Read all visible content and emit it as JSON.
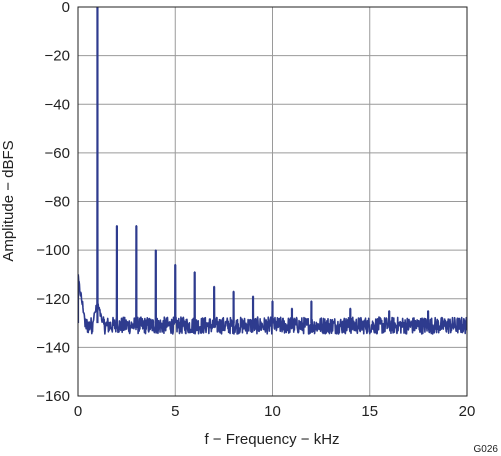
{
  "chart_data": {
    "type": "line",
    "xlabel": "f − Frequency − kHz",
    "ylabel": "Amplitude − dBFS",
    "figure_id": "G026",
    "xlim": [
      0,
      20
    ],
    "ylim": [
      -160,
      0
    ],
    "x_ticks": [
      0,
      5,
      10,
      15,
      20
    ],
    "y_ticks": [
      0,
      -20,
      -40,
      -60,
      -80,
      -100,
      -120,
      -140,
      -160
    ],
    "x_tick_labels": [
      "0",
      "5",
      "10",
      "15",
      "20"
    ],
    "y_tick_labels": [
      "0",
      "−20",
      "−40",
      "−60",
      "−80",
      "−100",
      "−120",
      "−140",
      "−160"
    ],
    "grid": true,
    "line_color": "#2E3B8E",
    "noise_floor_dbfs": -130,
    "peaks": [
      {
        "x": 0.0,
        "y": -110
      },
      {
        "x": 1.0,
        "y": 0
      },
      {
        "x": 2.0,
        "y": -90
      },
      {
        "x": 3.0,
        "y": -90
      },
      {
        "x": 4.0,
        "y": -100
      },
      {
        "x": 5.0,
        "y": -106
      },
      {
        "x": 6.0,
        "y": -109
      },
      {
        "x": 7.0,
        "y": -115
      },
      {
        "x": 8.0,
        "y": -117
      },
      {
        "x": 9.0,
        "y": -119
      },
      {
        "x": 10.0,
        "y": -121
      },
      {
        "x": 11.0,
        "y": -124
      },
      {
        "x": 12.0,
        "y": -121
      },
      {
        "x": 14.0,
        "y": -124
      },
      {
        "x": 16.0,
        "y": -125
      },
      {
        "x": 18.0,
        "y": -125
      }
    ]
  }
}
